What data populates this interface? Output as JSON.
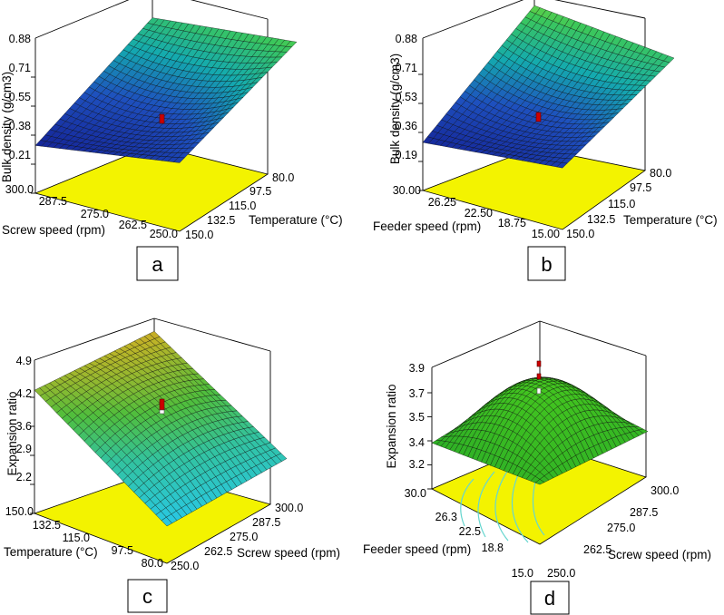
{
  "chart_data": [
    {
      "type": "surface3d",
      "panel_label": "a",
      "zlabel": "Bulk density (g/cm3)",
      "xlabel": "Screw speed (rpm)",
      "ylabel": "Temperature (°C)",
      "z_ticks": [
        "0.21",
        "0.38",
        "0.55",
        "0.71",
        "0.88"
      ],
      "x_ticks": [
        "300.0",
        "287.5",
        "275.0",
        "262.5",
        "250.0"
      ],
      "y_ticks": [
        "80.0",
        "97.5",
        "115.0",
        "132.5",
        "150.0"
      ],
      "zlim": [
        0.21,
        0.88
      ],
      "corner_values": {
        "far_left": 0.26,
        "far_right": 0.72,
        "near_left": 0.38,
        "near_right": 0.8,
        "center": 0.45
      }
    },
    {
      "type": "surface3d",
      "panel_label": "b",
      "zlabel": "Bulk density (g/cm3)",
      "xlabel": "Feeder speed (rpm)",
      "ylabel": "Temperature (°C)",
      "z_ticks": [
        "0.19",
        "0.36",
        "0.53",
        "0.71",
        "0.88"
      ],
      "x_ticks": [
        "30.00",
        "26.25",
        "22.50",
        "18.75",
        "15.00"
      ],
      "y_ticks": [
        "80.0",
        "97.5",
        "115.0",
        "132.5",
        "150.0"
      ],
      "zlim": [
        0.19,
        0.88
      ],
      "corner_values": {
        "far_left": 0.26,
        "far_right": 0.82,
        "near_left": 0.34,
        "near_right": 0.74,
        "center": 0.45
      }
    },
    {
      "type": "surface3d",
      "panel_label": "c",
      "zlabel": "Expansion ratio",
      "xlabel": "Temperature (°C)",
      "ylabel": "Screw speed (rpm)",
      "z_ticks": [
        "2.2",
        "2.9",
        "3.6",
        "4.2",
        "4.9"
      ],
      "x_ticks": [
        "150.0",
        "132.5",
        "115.0",
        "97.5",
        "80.0"
      ],
      "y_ticks": [
        "300.0",
        "287.5",
        "275.0",
        "262.5",
        "250.0"
      ],
      "zlim": [
        2.2,
        4.9
      ],
      "corner_values": {
        "far_left": 4.2,
        "far_right": 4.6,
        "near_left": 2.2,
        "near_right": 2.8,
        "center": 3.8
      }
    },
    {
      "type": "surface3d",
      "panel_label": "d",
      "zlabel": "Expansion ratio",
      "xlabel": "Feeder speed (rpm)",
      "ylabel": "Screw speed (rpm)",
      "z_ticks": [
        "3.2",
        "3.4",
        "3.5",
        "3.7",
        "3.9"
      ],
      "x_ticks": [
        "30.0",
        "26.3",
        "22.5",
        "18.8",
        "15.0"
      ],
      "y_ticks": [
        "300.0",
        "287.5",
        "275.0",
        "262.5",
        "250.0"
      ],
      "zlim": [
        3.2,
        3.9
      ],
      "corner_values": {
        "far_left": 3.35,
        "far_right": 3.5,
        "near_left": 3.45,
        "near_right": 3.5,
        "center": 3.8
      }
    }
  ]
}
